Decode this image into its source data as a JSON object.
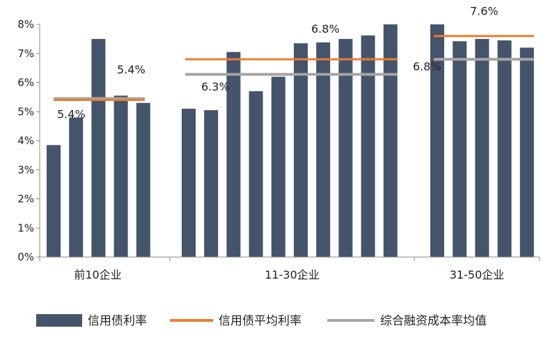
{
  "chart_data": {
    "type": "bar",
    "y_axis": {
      "ticks": [
        "0%",
        "1%",
        "2%",
        "3%",
        "4%",
        "5%",
        "6%",
        "7%",
        "8%"
      ],
      "ylim": [
        0,
        8
      ],
      "unit": "%"
    },
    "groups": [
      {
        "label": "前10企业",
        "bar_values": [
          3.85,
          4.8,
          7.5,
          5.55,
          5.3
        ],
        "avg_rate": 5.4,
        "avg_rate_label": "5.4%",
        "cost_avg": 5.45,
        "cost_avg_label": "5.4%"
      },
      {
        "label": "11-30企业",
        "bar_values": [
          5.1,
          5.05,
          7.05,
          5.7,
          6.2,
          7.35,
          7.38,
          7.5,
          7.62,
          8.0
        ],
        "avg_rate": 6.8,
        "avg_rate_label": "6.8%",
        "cost_avg": 6.28,
        "cost_avg_label": "6.3%"
      },
      {
        "label": "31-50企业",
        "bar_values": [
          8.0,
          7.42,
          7.5,
          7.45,
          7.2
        ],
        "avg_rate": 7.6,
        "avg_rate_label": "7.6%",
        "cost_avg": 6.8,
        "cost_avg_label": "6.8%"
      }
    ],
    "series": [
      {
        "name": "信用债利率",
        "type": "bar",
        "color": "#44546a"
      },
      {
        "name": "信用债平均利率",
        "type": "line",
        "color": "#ed7d31"
      },
      {
        "name": "综合融资成本率均值",
        "type": "line",
        "color": "#a5a5a5"
      }
    ],
    "legend_position": "bottom",
    "grid": false
  }
}
